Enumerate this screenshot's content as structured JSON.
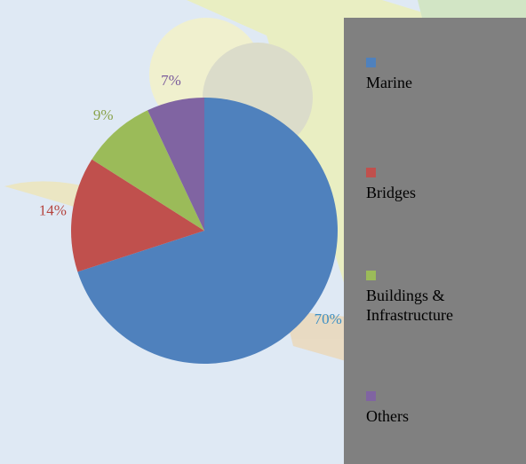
{
  "chart_data": {
    "type": "pie",
    "categories": [
      "Marine",
      "Bridges",
      "Buildings & Infrastructure",
      "Others"
    ],
    "values": [
      70,
      14,
      9,
      7
    ],
    "value_labels": [
      "70%",
      "14%",
      "9%",
      "7%"
    ],
    "colors": [
      "#4f81bd",
      "#c0504d",
      "#9bbb59",
      "#8064a2"
    ],
    "label_colors": [
      "#3b8fc6",
      "#b5453f",
      "#8aa34c",
      "#7a5a9c"
    ],
    "legend": "right"
  }
}
